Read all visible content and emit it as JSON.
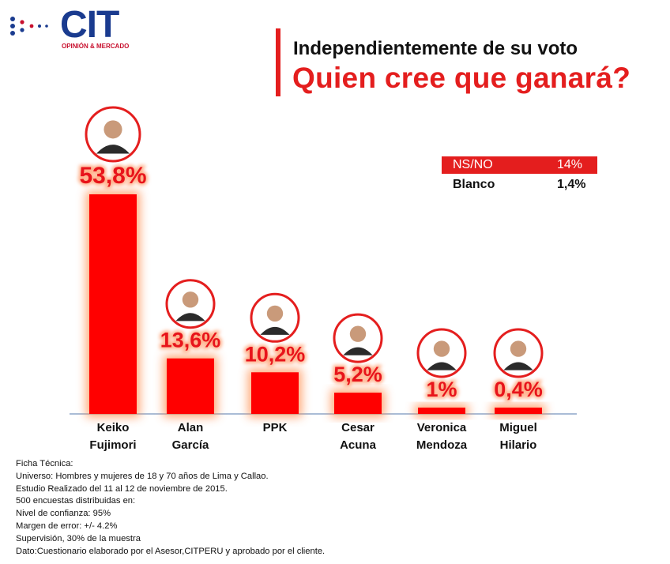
{
  "logo": {
    "name": "CIT",
    "tagline": "OPINIÓN & MERCADO"
  },
  "title": {
    "line1": "Independientemente de su voto",
    "line2": "Quien cree que ganará?"
  },
  "side_table": [
    {
      "label": "NS/NO",
      "value": "14%"
    },
    {
      "label": "Blanco",
      "value": "1,4%"
    }
  ],
  "chart_data": {
    "type": "bar",
    "categories": [
      [
        "Keiko",
        "Fujimori"
      ],
      [
        "Alan",
        "García"
      ],
      [
        "PPK"
      ],
      [
        "Cesar",
        "Acuna"
      ],
      [
        "Veronica",
        "Mendoza"
      ],
      [
        "Miguel",
        "Hilario"
      ]
    ],
    "values": [
      53.8,
      13.6,
      10.2,
      5.2,
      1,
      0.4
    ],
    "value_labels": [
      "53,8%",
      "13,6%",
      "10,2%",
      "5,2%",
      "1%",
      "0,4%"
    ],
    "bar_color": "#ff0000",
    "glow_color": "#ff8a4a",
    "photo_ring_color": "#e41e1e",
    "grid": false,
    "legend": "none"
  },
  "ficha": [
    "Ficha Técnica:",
    "Universo: Hombres y mujeres de 18 y 70 años de Lima y Callao.",
    "Estudio Realizado del 11 al 12 de noviembre de 2015.",
    "500 encuestas distribuidas en:",
    "Nivel de confianza: 95%",
    "Margen de error: +/- 4.2%",
    "Supervisión, 30% de la muestra",
    "Dato:Cuestionario elaborado por el Asesor,CITPERU y aprobado por el cliente."
  ]
}
